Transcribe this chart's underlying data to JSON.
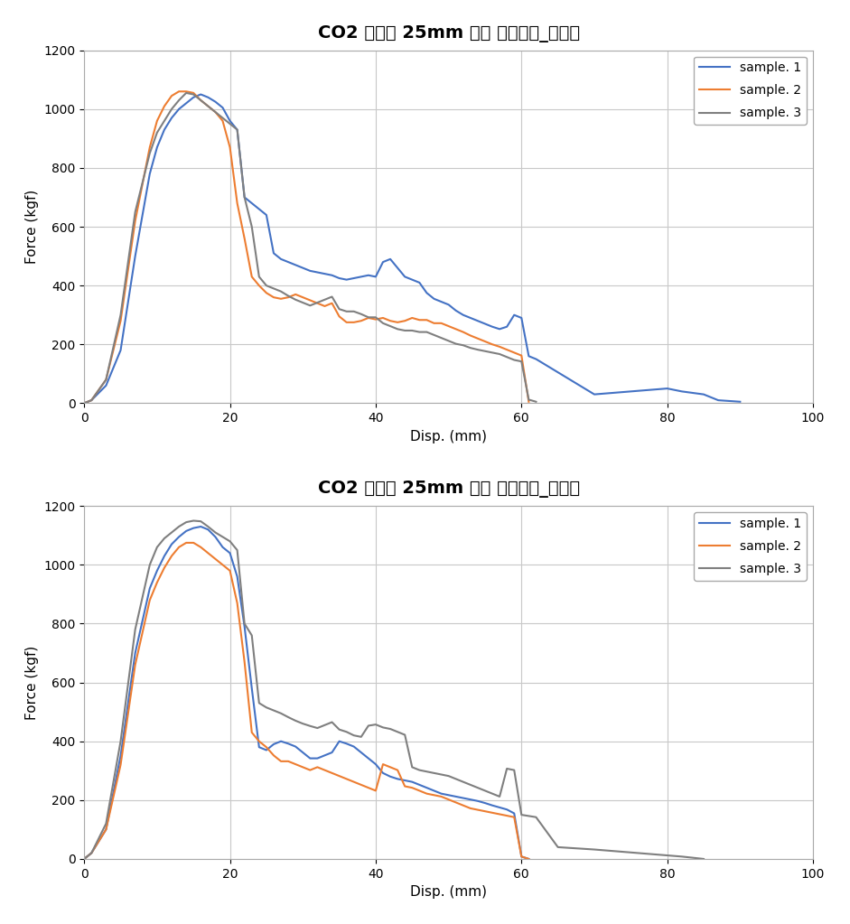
{
  "chart1": {
    "title": "CO2 용접부 25mm 비드 강도시험_초기품",
    "xlabel": "Disp. (mm)",
    "ylabel": "Force (kgf)",
    "xlim": [
      0,
      100
    ],
    "ylim": [
      0,
      1200
    ],
    "xticks": [
      0,
      20,
      40,
      60,
      80,
      100
    ],
    "yticks": [
      0,
      200,
      400,
      600,
      800,
      1000,
      1200
    ],
    "samples": {
      "sample1": {
        "color": "#4472C4",
        "label": "sample. 1",
        "x": [
          0,
          1,
          3,
          5,
          7,
          9,
          10,
          11,
          12,
          13,
          14,
          15,
          16,
          17,
          18,
          19,
          20,
          21,
          22,
          23,
          24,
          25,
          26,
          27,
          28,
          29,
          30,
          31,
          32,
          33,
          34,
          35,
          36,
          37,
          38,
          39,
          40,
          41,
          42,
          43,
          44,
          45,
          46,
          47,
          48,
          49,
          50,
          51,
          52,
          53,
          54,
          55,
          56,
          57,
          58,
          59,
          60,
          61,
          62,
          70,
          75,
          80,
          82,
          85,
          87,
          90
        ],
        "y": [
          0,
          10,
          60,
          180,
          500,
          780,
          870,
          930,
          970,
          1000,
          1020,
          1040,
          1050,
          1040,
          1025,
          1005,
          960,
          930,
          700,
          680,
          660,
          640,
          510,
          490,
          480,
          470,
          460,
          450,
          445,
          440,
          435,
          425,
          420,
          425,
          430,
          435,
          430,
          480,
          490,
          460,
          430,
          420,
          410,
          375,
          355,
          345,
          335,
          315,
          300,
          290,
          280,
          270,
          260,
          252,
          260,
          300,
          290,
          160,
          150,
          30,
          40,
          50,
          40,
          30,
          10,
          5
        ]
      },
      "sample2": {
        "color": "#ED7D31",
        "label": "sample. 2",
        "x": [
          0,
          1,
          3,
          5,
          7,
          9,
          10,
          11,
          12,
          13,
          14,
          15,
          16,
          17,
          18,
          19,
          20,
          21,
          22,
          23,
          24,
          25,
          26,
          27,
          28,
          29,
          30,
          31,
          32,
          33,
          34,
          35,
          36,
          37,
          38,
          39,
          40,
          41,
          42,
          43,
          44,
          45,
          46,
          47,
          48,
          49,
          50,
          51,
          52,
          53,
          54,
          55,
          56,
          57,
          58,
          59,
          60,
          61
        ],
        "y": [
          0,
          10,
          80,
          280,
          620,
          870,
          960,
          1010,
          1045,
          1060,
          1060,
          1055,
          1030,
          1010,
          990,
          960,
          870,
          680,
          560,
          430,
          400,
          375,
          360,
          355,
          360,
          370,
          360,
          350,
          340,
          330,
          340,
          295,
          275,
          275,
          280,
          290,
          285,
          290,
          280,
          275,
          280,
          290,
          283,
          283,
          272,
          272,
          262,
          252,
          242,
          230,
          220,
          210,
          200,
          192,
          182,
          172,
          162,
          5
        ]
      },
      "sample3": {
        "color": "#7F7F7F",
        "label": "sample. 3",
        "x": [
          0,
          1,
          3,
          5,
          7,
          9,
          10,
          11,
          12,
          13,
          14,
          15,
          16,
          17,
          18,
          19,
          20,
          21,
          22,
          23,
          24,
          25,
          26,
          27,
          28,
          29,
          30,
          31,
          32,
          33,
          34,
          35,
          36,
          37,
          38,
          39,
          40,
          41,
          42,
          43,
          44,
          45,
          46,
          47,
          48,
          49,
          50,
          51,
          52,
          53,
          54,
          55,
          56,
          57,
          58,
          59,
          60,
          61,
          62
        ],
        "y": [
          0,
          10,
          80,
          300,
          650,
          850,
          920,
          960,
          1000,
          1030,
          1055,
          1050,
          1030,
          1010,
          990,
          970,
          950,
          930,
          700,
          600,
          430,
          400,
          390,
          380,
          365,
          352,
          342,
          332,
          342,
          352,
          362,
          320,
          312,
          312,
          303,
          292,
          292,
          272,
          262,
          252,
          247,
          247,
          242,
          242,
          232,
          222,
          212,
          202,
          197,
          188,
          182,
          177,
          172,
          167,
          157,
          147,
          142,
          12,
          5
        ]
      }
    }
  },
  "chart2": {
    "title": "CO2 용접부 25mm 비드 강도시험_시제품",
    "xlabel": "Disp. (mm)",
    "ylabel": "Force (kgf)",
    "xlim": [
      0,
      100
    ],
    "ylim": [
      0,
      1200
    ],
    "xticks": [
      0,
      20,
      40,
      60,
      80,
      100
    ],
    "yticks": [
      0,
      200,
      400,
      600,
      800,
      1000,
      1200
    ],
    "samples": {
      "sample1": {
        "color": "#4472C4",
        "label": "sample. 1",
        "x": [
          0,
          1,
          3,
          5,
          7,
          9,
          10,
          11,
          12,
          13,
          14,
          15,
          16,
          17,
          18,
          19,
          20,
          21,
          22,
          23,
          24,
          25,
          26,
          27,
          28,
          29,
          30,
          31,
          32,
          33,
          34,
          35,
          36,
          37,
          38,
          39,
          40,
          41,
          42,
          43,
          44,
          45,
          46,
          47,
          48,
          49,
          50,
          51,
          52,
          53,
          54,
          55,
          56,
          57,
          58,
          59,
          60,
          61
        ],
        "y": [
          0,
          20,
          100,
          350,
          700,
          920,
          980,
          1030,
          1070,
          1095,
          1115,
          1125,
          1130,
          1120,
          1095,
          1060,
          1040,
          960,
          790,
          580,
          380,
          370,
          390,
          400,
          392,
          382,
          362,
          342,
          342,
          352,
          362,
          400,
          392,
          382,
          362,
          342,
          322,
          292,
          280,
          272,
          267,
          262,
          252,
          242,
          232,
          222,
          217,
          212,
          207,
          202,
          197,
          190,
          182,
          175,
          168,
          155,
          8,
          0
        ]
      },
      "sample2": {
        "color": "#ED7D31",
        "label": "sample. 2",
        "x": [
          0,
          1,
          3,
          5,
          7,
          9,
          10,
          11,
          12,
          13,
          14,
          15,
          16,
          17,
          18,
          19,
          20,
          21,
          22,
          23,
          24,
          25,
          26,
          27,
          28,
          29,
          30,
          31,
          32,
          33,
          34,
          35,
          36,
          37,
          38,
          39,
          40,
          41,
          42,
          43,
          44,
          45,
          46,
          47,
          48,
          49,
          50,
          51,
          52,
          53,
          54,
          55,
          56,
          57,
          58,
          59,
          60,
          61
        ],
        "y": [
          0,
          20,
          100,
          320,
          660,
          880,
          940,
          990,
          1030,
          1060,
          1075,
          1075,
          1060,
          1040,
          1020,
          1000,
          980,
          870,
          670,
          430,
          400,
          380,
          352,
          332,
          332,
          322,
          312,
          302,
          312,
          302,
          292,
          282,
          272,
          262,
          252,
          242,
          232,
          322,
          312,
          302,
          247,
          242,
          232,
          222,
          217,
          212,
          202,
          192,
          182,
          172,
          167,
          162,
          157,
          152,
          147,
          142,
          8,
          0
        ]
      },
      "sample3": {
        "color": "#7F7F7F",
        "label": "sample. 3",
        "x": [
          0,
          1,
          3,
          5,
          7,
          9,
          10,
          11,
          12,
          13,
          14,
          15,
          16,
          17,
          18,
          19,
          20,
          21,
          22,
          23,
          24,
          25,
          26,
          27,
          28,
          29,
          30,
          31,
          32,
          33,
          34,
          35,
          36,
          37,
          38,
          39,
          40,
          41,
          42,
          43,
          44,
          45,
          46,
          47,
          48,
          49,
          50,
          51,
          52,
          53,
          54,
          55,
          56,
          57,
          58,
          59,
          60,
          62,
          65,
          70,
          75,
          80,
          82,
          85
        ],
        "y": [
          0,
          20,
          120,
          400,
          780,
          1000,
          1060,
          1090,
          1110,
          1130,
          1145,
          1150,
          1148,
          1130,
          1110,
          1095,
          1080,
          1050,
          800,
          760,
          530,
          515,
          505,
          495,
          482,
          470,
          460,
          452,
          445,
          455,
          465,
          440,
          432,
          420,
          415,
          453,
          457,
          447,
          442,
          432,
          422,
          312,
          302,
          297,
          292,
          287,
          282,
          272,
          262,
          252,
          242,
          232,
          222,
          212,
          307,
          302,
          150,
          142,
          40,
          32,
          22,
          12,
          8,
          0
        ]
      }
    }
  },
  "background_color": "#FFFFFF",
  "grid_color": "#C8C8C8",
  "legend_fontsize": 10,
  "axis_label_fontsize": 11,
  "title_fontsize": 14,
  "tick_fontsize": 10,
  "linewidth": 1.5
}
